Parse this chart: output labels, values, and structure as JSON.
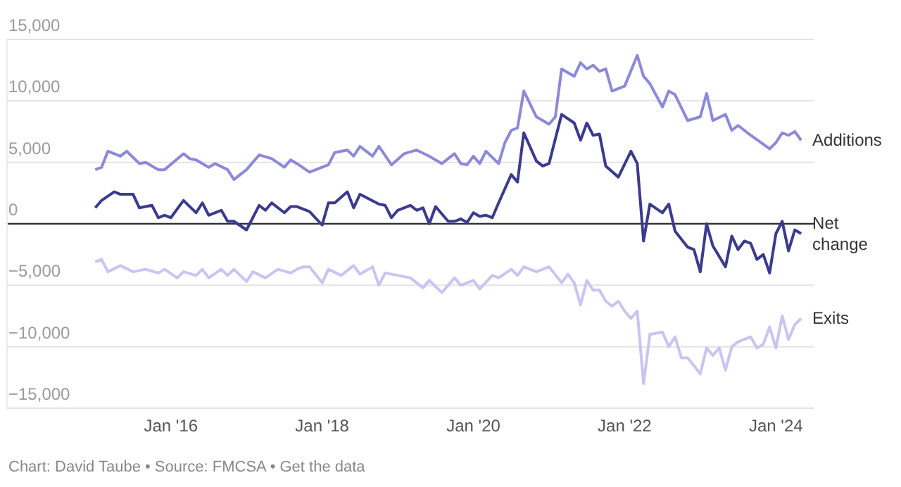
{
  "chart_data": {
    "type": "line",
    "legend": false,
    "grid": "y",
    "marker": "none",
    "line_style": "solid",
    "xlim": [
      "2013-11",
      "2024-07"
    ],
    "xticks": [
      {
        "value": "2016-01",
        "label": "Jan '16"
      },
      {
        "value": "2018-01",
        "label": "Jan '18"
      },
      {
        "value": "2020-01",
        "label": "Jan '20"
      },
      {
        "value": "2022-01",
        "label": "Jan '22"
      },
      {
        "value": "2024-01",
        "label": "Jan '24"
      }
    ],
    "ylim": [
      -15000,
      15000
    ],
    "yticks": [
      {
        "value": -15000,
        "label": "−15,000"
      },
      {
        "value": -10000,
        "label": "−10,000"
      },
      {
        "value": -5000,
        "label": "−5,000"
      },
      {
        "value": 0,
        "label": "0"
      },
      {
        "value": 5000,
        "label": "5,000"
      },
      {
        "value": 10000,
        "label": "10,000"
      },
      {
        "value": 15000,
        "label": "15,000"
      }
    ],
    "ref_lines": [
      {
        "axis": "y",
        "value": 0,
        "color": "#333333"
      }
    ],
    "annotations": [
      "Chart: David Taube • Source: FMCSA • Get the data"
    ],
    "series": [
      {
        "name": "Additions",
        "color": "#8d89d8",
        "x": [
          "2015-01",
          "2015-02",
          "2015-03",
          "2015-04",
          "2015-05",
          "2015-06",
          "2015-08",
          "2015-09",
          "2015-11",
          "2015-12",
          "2016-03",
          "2016-04",
          "2016-05",
          "2016-07",
          "2016-08",
          "2016-10",
          "2016-11",
          "2017-01",
          "2017-03",
          "2017-05",
          "2017-07",
          "2017-08",
          "2017-09",
          "2017-11",
          "2018-02",
          "2018-03",
          "2018-05",
          "2018-06",
          "2018-07",
          "2018-09",
          "2018-10",
          "2018-12",
          "2019-02",
          "2019-04",
          "2019-06",
          "2019-08",
          "2019-10",
          "2019-11",
          "2019-12",
          "2020-01",
          "2020-02",
          "2020-03",
          "2020-05",
          "2020-06",
          "2020-07",
          "2020-08",
          "2020-09",
          "2020-11",
          "2021-01",
          "2021-02",
          "2021-03",
          "2021-05",
          "2021-06",
          "2021-07",
          "2021-08",
          "2021-09",
          "2021-10",
          "2021-11",
          "2022-01",
          "2022-03",
          "2022-04",
          "2022-05",
          "2022-07",
          "2022-08",
          "2022-09",
          "2022-11",
          "2023-01",
          "2023-02",
          "2023-03",
          "2023-05",
          "2023-06",
          "2023-07",
          "2023-09",
          "2023-12",
          "2024-01",
          "2024-02",
          "2024-03",
          "2024-04",
          "2024-05"
        ],
        "values": [
          4400,
          4600,
          5900,
          5700,
          5500,
          5900,
          4900,
          5000,
          4400,
          4400,
          5700,
          5300,
          5200,
          4600,
          4900,
          4400,
          3600,
          4400,
          5600,
          5300,
          4600,
          5200,
          4900,
          4200,
          4800,
          5800,
          6000,
          5500,
          6300,
          5500,
          6300,
          4800,
          5700,
          6000,
          5500,
          4900,
          5700,
          4900,
          4800,
          5500,
          4900,
          5900,
          4900,
          6600,
          7600,
          7800,
          10800,
          8700,
          8100,
          8700,
          12600,
          12000,
          13100,
          12600,
          12900,
          12400,
          12600,
          10800,
          11200,
          13700,
          12000,
          11400,
          9500,
          10800,
          10500,
          8400,
          8700,
          10600,
          8400,
          8900,
          7600,
          8000,
          7200,
          6100,
          6600,
          7400,
          7200,
          7500,
          6800
        ]
      },
      {
        "name": "Net change",
        "color": "#3b3a8e",
        "x": [
          "2015-01",
          "2015-02",
          "2015-04",
          "2015-05",
          "2015-07",
          "2015-08",
          "2015-10",
          "2015-11",
          "2015-12",
          "2016-01",
          "2016-03",
          "2016-05",
          "2016-06",
          "2016-07",
          "2016-09",
          "2016-10",
          "2016-11",
          "2017-01",
          "2017-03",
          "2017-04",
          "2017-05",
          "2017-07",
          "2017-08",
          "2017-09",
          "2017-11",
          "2018-01",
          "2018-02",
          "2018-03",
          "2018-05",
          "2018-06",
          "2018-07",
          "2018-10",
          "2018-11",
          "2018-12",
          "2019-01",
          "2019-03",
          "2019-04",
          "2019-05",
          "2019-06",
          "2019-07",
          "2019-09",
          "2019-10",
          "2019-11",
          "2019-12",
          "2020-01",
          "2020-02",
          "2020-03",
          "2020-04",
          "2020-05",
          "2020-07",
          "2020-08",
          "2020-09",
          "2020-11",
          "2020-12",
          "2021-01",
          "2021-03",
          "2021-05",
          "2021-06",
          "2021-07",
          "2021-08",
          "2021-09",
          "2021-10",
          "2021-12",
          "2022-02",
          "2022-03",
          "2022-04",
          "2022-05",
          "2022-07",
          "2022-08",
          "2022-09",
          "2022-11",
          "2022-12",
          "2023-01",
          "2023-02",
          "2023-03",
          "2023-05",
          "2023-06",
          "2023-07",
          "2023-08",
          "2023-09",
          "2023-10",
          "2023-11",
          "2023-12",
          "2024-01",
          "2024-02",
          "2024-03",
          "2024-04",
          "2024-05"
        ],
        "values": [
          1300,
          1900,
          2600,
          2400,
          2400,
          1300,
          1500,
          500,
          700,
          500,
          1900,
          900,
          1700,
          700,
          1100,
          200,
          200,
          -500,
          1500,
          1100,
          1700,
          900,
          1400,
          1400,
          1000,
          -100,
          1700,
          1700,
          2600,
          1300,
          2400,
          1600,
          1500,
          500,
          1100,
          1500,
          1100,
          1300,
          0,
          1400,
          200,
          200,
          400,
          100,
          900,
          600,
          700,
          500,
          1700,
          4000,
          3400,
          7400,
          5100,
          4700,
          4900,
          8900,
          8200,
          6800,
          8200,
          7200,
          7300,
          4700,
          3800,
          5900,
          4900,
          -1400,
          1600,
          900,
          1600,
          -600,
          -1900,
          -2100,
          -3900,
          0,
          -1800,
          -3500,
          -1000,
          -2100,
          -1400,
          -1600,
          -2900,
          -2500,
          -4000,
          -800,
          200,
          -2200,
          -500,
          -800
        ]
      },
      {
        "name": "Exits",
        "color": "#c8c5f0",
        "x": [
          "2015-01",
          "2015-02",
          "2015-03",
          "2015-05",
          "2015-07",
          "2015-09",
          "2015-11",
          "2015-12",
          "2016-02",
          "2016-03",
          "2016-05",
          "2016-06",
          "2016-07",
          "2016-09",
          "2016-10",
          "2016-11",
          "2017-01",
          "2017-02",
          "2017-04",
          "2017-06",
          "2017-08",
          "2017-09",
          "2017-10",
          "2017-11",
          "2018-01",
          "2018-02",
          "2018-04",
          "2018-06",
          "2018-07",
          "2018-09",
          "2018-10",
          "2018-11",
          "2019-01",
          "2019-03",
          "2019-05",
          "2019-06",
          "2019-08",
          "2019-10",
          "2019-11",
          "2020-01",
          "2020-02",
          "2020-04",
          "2020-05",
          "2020-07",
          "2020-08",
          "2020-09",
          "2020-11",
          "2021-01",
          "2021-03",
          "2021-04",
          "2021-05",
          "2021-06",
          "2021-07",
          "2021-08",
          "2021-09",
          "2021-10",
          "2021-11",
          "2021-12",
          "2022-01",
          "2022-02",
          "2022-03",
          "2022-04",
          "2022-05",
          "2022-07",
          "2022-08",
          "2022-09",
          "2022-10",
          "2022-11",
          "2023-01",
          "2023-02",
          "2023-03",
          "2023-04",
          "2023-05",
          "2023-06",
          "2023-07",
          "2023-09",
          "2023-10",
          "2023-11",
          "2023-12",
          "2024-01",
          "2024-02",
          "2024-03",
          "2024-04",
          "2024-05"
        ],
        "values": [
          -3100,
          -2900,
          -3900,
          -3400,
          -3900,
          -3700,
          -4000,
          -3700,
          -4400,
          -3900,
          -4200,
          -3700,
          -4400,
          -3700,
          -4200,
          -3700,
          -4700,
          -3900,
          -4400,
          -3700,
          -4000,
          -3700,
          -3500,
          -3500,
          -4800,
          -3700,
          -4200,
          -3400,
          -4100,
          -3500,
          -5000,
          -4000,
          -4200,
          -4400,
          -5200,
          -4600,
          -5600,
          -4400,
          -5000,
          -4600,
          -5300,
          -4200,
          -4400,
          -3700,
          -4200,
          -3500,
          -3900,
          -3500,
          -4800,
          -4100,
          -4800,
          -6600,
          -4600,
          -5400,
          -5400,
          -6300,
          -6700,
          -6300,
          -7100,
          -7700,
          -7100,
          -13000,
          -9000,
          -8800,
          -10000,
          -9200,
          -10900,
          -10900,
          -12200,
          -10100,
          -10700,
          -10100,
          -11900,
          -10000,
          -9600,
          -9200,
          -10100,
          -9800,
          -8400,
          -10100,
          -7500,
          -9400,
          -8200,
          -7700
        ]
      }
    ]
  }
}
